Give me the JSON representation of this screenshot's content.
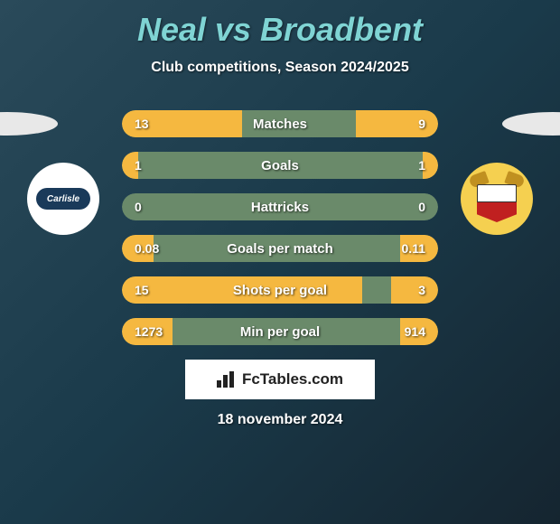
{
  "title": "Neal vs Broadbent",
  "subtitle": "Club competitions, Season 2024/2025",
  "colors": {
    "title": "#7fd4d4",
    "bar_fill": "#f5b840",
    "bar_bg": "#6a8a6a",
    "text": "#ffffff"
  },
  "crest_left_text": "Carlisle",
  "stats": [
    {
      "label": "Matches",
      "left_val": "13",
      "right_val": "9",
      "left_pct": 38,
      "right_pct": 26
    },
    {
      "label": "Goals",
      "left_val": "1",
      "right_val": "1",
      "left_pct": 5,
      "right_pct": 5
    },
    {
      "label": "Hattricks",
      "left_val": "0",
      "right_val": "0",
      "left_pct": 0,
      "right_pct": 0
    },
    {
      "label": "Goals per match",
      "left_val": "0.08",
      "right_val": "0.11",
      "left_pct": 10,
      "right_pct": 12
    },
    {
      "label": "Shots per goal",
      "left_val": "15",
      "right_val": "3",
      "left_pct": 76,
      "right_pct": 15
    },
    {
      "label": "Min per goal",
      "left_val": "1273",
      "right_val": "914",
      "left_pct": 16,
      "right_pct": 12
    }
  ],
  "brand": "FcTables.com",
  "date": "18 november 2024"
}
